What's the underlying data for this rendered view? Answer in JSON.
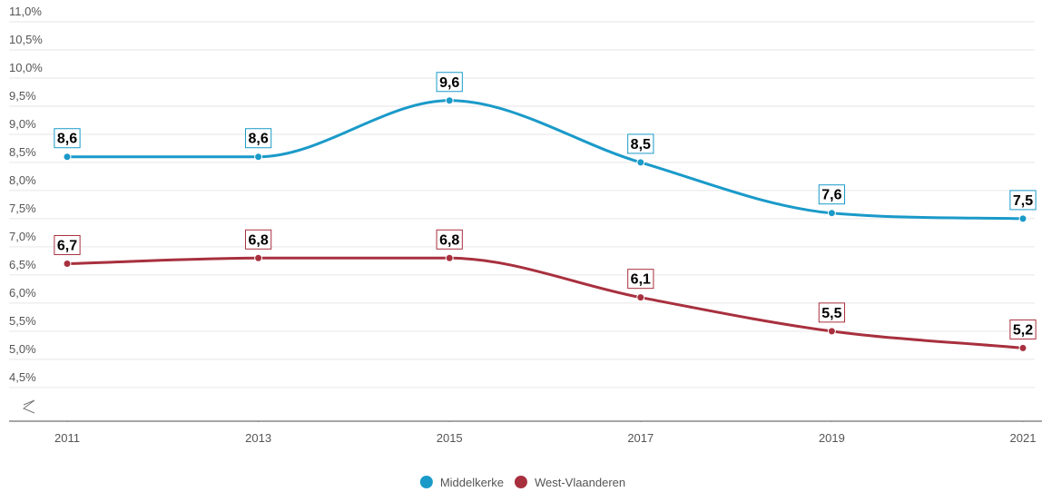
{
  "chart_data": {
    "type": "line",
    "x": [
      2011,
      2013,
      2015,
      2017,
      2019,
      2021
    ],
    "xlim": [
      2011,
      2021
    ],
    "xticks": [
      2011,
      2013,
      2015,
      2017,
      2019,
      2021
    ],
    "ylim": [
      3.9,
      11.0
    ],
    "yticks": [
      {
        "value": 4.5,
        "label": "4,5%"
      },
      {
        "value": 5.0,
        "label": "5,0%"
      },
      {
        "value": 5.5,
        "label": "5,5%"
      },
      {
        "value": 6.0,
        "label": "6,0%"
      },
      {
        "value": 6.5,
        "label": "6,5%"
      },
      {
        "value": 7.0,
        "label": "7,0%"
      },
      {
        "value": 7.5,
        "label": "7,5%"
      },
      {
        "value": 8.0,
        "label": "8,0%"
      },
      {
        "value": 8.5,
        "label": "8,5%"
      },
      {
        "value": 9.0,
        "label": "9,0%"
      },
      {
        "value": 9.5,
        "label": "9,5%"
      },
      {
        "value": 10.0,
        "label": "10,0%"
      },
      {
        "value": 10.5,
        "label": "10,5%"
      },
      {
        "value": 11.0,
        "label": "11,0%"
      }
    ],
    "grid": true,
    "legend": "bottom",
    "series": [
      {
        "name": "Middelkerke",
        "color": "#1a9ac9",
        "values": [
          8.6,
          8.6,
          9.6,
          8.5,
          7.6,
          7.5
        ],
        "value_labels": [
          "8,6",
          "8,6",
          "9,6",
          "8,5",
          "7,6",
          "7,5"
        ]
      },
      {
        "name": "West-Vlaanderen",
        "color": "#a8303e",
        "values": [
          6.7,
          6.8,
          6.8,
          6.1,
          5.5,
          5.2
        ],
        "value_labels": [
          "6,7",
          "6,8",
          "6,8",
          "6,1",
          "5,5",
          "5,2"
        ]
      }
    ]
  }
}
